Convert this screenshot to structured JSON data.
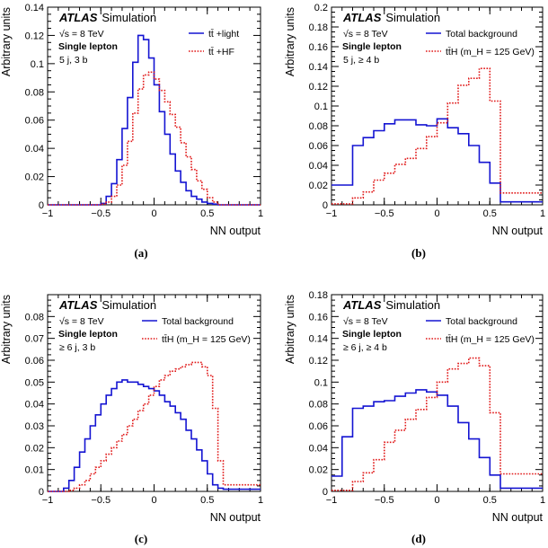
{
  "colors": {
    "series1": "#1414d2",
    "series2": "#e01818"
  },
  "chart_data": [
    {
      "type": "line",
      "panel_label": "(a)",
      "title": "ATLAS Simulation",
      "atlas": "ATLAS",
      "simulation": "Simulation",
      "energy": "√s = 8 TeV",
      "channel": "Single lepton",
      "region": "5 j, 3 b",
      "xlabel": "NN output",
      "ylabel": "Arbitrary units",
      "xlim": [
        -1,
        1
      ],
      "ylim": [
        0,
        0.14
      ],
      "xticks": [
        {
          "v": -1,
          "t": "−1"
        },
        {
          "v": -0.5,
          "t": "−0.5"
        },
        {
          "v": 0,
          "t": "0"
        },
        {
          "v": 0.5,
          "t": "0.5"
        },
        {
          "v": 1,
          "t": "1"
        }
      ],
      "yticks": [
        {
          "v": 0,
          "t": "0"
        },
        {
          "v": 0.02,
          "t": "0.02"
        },
        {
          "v": 0.04,
          "t": "0.04"
        },
        {
          "v": 0.06,
          "t": "0.06"
        },
        {
          "v": 0.08,
          "t": "0.08"
        },
        {
          "v": 0.1,
          "t": "0.1"
        },
        {
          "v": 0.12,
          "t": "0.12"
        },
        {
          "v": 0.14,
          "t": "0.14"
        }
      ],
      "series": [
        {
          "name": "tt̄ +light",
          "style": "solid",
          "edges": [
            -1,
            -0.5,
            -0.45,
            -0.4,
            -0.35,
            -0.3,
            -0.25,
            -0.2,
            -0.15,
            -0.1,
            -0.05,
            0,
            0.05,
            0.1,
            0.15,
            0.2,
            0.25,
            0.3,
            0.35,
            0.4,
            0.45,
            0.5,
            0.55,
            0.6,
            1
          ],
          "values": [
            0,
            0.001,
            0.006,
            0.015,
            0.032,
            0.054,
            0.076,
            0.101,
            0.12,
            0.117,
            0.104,
            0.085,
            0.066,
            0.05,
            0.036,
            0.024,
            0.016,
            0.01,
            0.006,
            0.004,
            0.002,
            0.001,
            0.0005,
            0
          ]
        },
        {
          "name": "tt̄ +HF",
          "style": "dotted",
          "edges": [
            -1,
            -0.5,
            -0.45,
            -0.4,
            -0.35,
            -0.3,
            -0.25,
            -0.2,
            -0.15,
            -0.1,
            -0.05,
            0,
            0.05,
            0.1,
            0.15,
            0.2,
            0.25,
            0.3,
            0.35,
            0.4,
            0.45,
            0.5,
            0.55,
            0.6,
            1
          ],
          "values": [
            0,
            0.0005,
            0.002,
            0.006,
            0.014,
            0.028,
            0.045,
            0.065,
            0.082,
            0.092,
            0.094,
            0.089,
            0.081,
            0.073,
            0.064,
            0.055,
            0.044,
            0.034,
            0.025,
            0.017,
            0.011,
            0.005,
            0.002,
            0
          ]
        }
      ]
    },
    {
      "type": "line",
      "panel_label": "(b)",
      "title": "ATLAS Simulation",
      "atlas": "ATLAS",
      "simulation": "Simulation",
      "energy": "√s = 8 TeV",
      "channel": "Single lepton",
      "region": "5 j, ≥ 4 b",
      "xlabel": "NN output",
      "ylabel": "Arbitrary units",
      "xlim": [
        -1,
        1
      ],
      "ylim": [
        0,
        0.2
      ],
      "xticks": [
        {
          "v": -1,
          "t": "−1"
        },
        {
          "v": -0.5,
          "t": "−0.5"
        },
        {
          "v": 0,
          "t": "0"
        },
        {
          "v": 0.5,
          "t": "0.5"
        },
        {
          "v": 1,
          "t": "1"
        }
      ],
      "yticks": [
        {
          "v": 0,
          "t": "0"
        },
        {
          "v": 0.02,
          "t": "0.02"
        },
        {
          "v": 0.04,
          "t": "0.04"
        },
        {
          "v": 0.06,
          "t": "0.06"
        },
        {
          "v": 0.08,
          "t": "0.08"
        },
        {
          "v": 0.1,
          "t": "0.1"
        },
        {
          "v": 0.12,
          "t": "0.12"
        },
        {
          "v": 0.14,
          "t": "0.14"
        },
        {
          "v": 0.16,
          "t": "0.16"
        },
        {
          "v": 0.18,
          "t": "0.18"
        },
        {
          "v": 0.2,
          "t": "0.2"
        }
      ],
      "series": [
        {
          "name": "Total background",
          "style": "solid",
          "edges": [
            -1,
            -0.8,
            -0.7,
            -0.6,
            -0.5,
            -0.4,
            -0.3,
            -0.2,
            -0.1,
            0,
            0.1,
            0.2,
            0.3,
            0.4,
            0.5,
            0.6,
            1
          ],
          "values": [
            0.02,
            0.06,
            0.068,
            0.075,
            0.082,
            0.086,
            0.086,
            0.081,
            0.08,
            0.087,
            0.078,
            0.072,
            0.06,
            0.043,
            0.022,
            0.003
          ]
        },
        {
          "name": "tt̄H (m_H = 125 GeV)",
          "style": "dotted",
          "edges": [
            -1,
            -0.8,
            -0.7,
            -0.6,
            -0.5,
            -0.4,
            -0.3,
            -0.2,
            -0.1,
            0,
            0.1,
            0.2,
            0.3,
            0.4,
            0.5,
            0.6,
            1
          ],
          "values": [
            0.001,
            0.007,
            0.013,
            0.025,
            0.032,
            0.041,
            0.047,
            0.057,
            0.069,
            0.083,
            0.103,
            0.121,
            0.128,
            0.138,
            0.105,
            0.012
          ]
        }
      ]
    },
    {
      "type": "line",
      "panel_label": "(c)",
      "title": "ATLAS Simulation",
      "atlas": "ATLAS",
      "simulation": "Simulation",
      "energy": "√s = 8 TeV",
      "channel": "Single lepton",
      "region": "≥ 6 j, 3 b",
      "xlabel": "NN output",
      "ylabel": "Arbitrary units",
      "xlim": [
        -1,
        1
      ],
      "ylim": [
        0,
        0.09
      ],
      "xticks": [
        {
          "v": -1,
          "t": "−1"
        },
        {
          "v": -0.5,
          "t": "−0.5"
        },
        {
          "v": 0,
          "t": "0"
        },
        {
          "v": 0.5,
          "t": "0.5"
        },
        {
          "v": 1,
          "t": "1"
        }
      ],
      "yticks": [
        {
          "v": 0,
          "t": "0"
        },
        {
          "v": 0.01,
          "t": "0.01"
        },
        {
          "v": 0.02,
          "t": "0.02"
        },
        {
          "v": 0.03,
          "t": "0.03"
        },
        {
          "v": 0.04,
          "t": "0.04"
        },
        {
          "v": 0.05,
          "t": "0.05"
        },
        {
          "v": 0.06,
          "t": "0.06"
        },
        {
          "v": 0.07,
          "t": "0.07"
        },
        {
          "v": 0.08,
          "t": "0.08"
        }
      ],
      "series": [
        {
          "name": "Total background",
          "style": "solid",
          "edges": [
            -1,
            -0.85,
            -0.8,
            -0.75,
            -0.7,
            -0.65,
            -0.6,
            -0.55,
            -0.5,
            -0.45,
            -0.4,
            -0.35,
            -0.3,
            -0.25,
            -0.2,
            -0.15,
            -0.1,
            -0.05,
            0,
            0.05,
            0.1,
            0.15,
            0.2,
            0.25,
            0.3,
            0.35,
            0.4,
            0.45,
            0.5,
            0.55,
            0.6,
            0.65,
            1
          ],
          "values": [
            0,
            0.0015,
            0.005,
            0.011,
            0.018,
            0.024,
            0.03,
            0.035,
            0.04,
            0.044,
            0.047,
            0.05,
            0.051,
            0.05,
            0.05,
            0.049,
            0.048,
            0.047,
            0.046,
            0.044,
            0.041,
            0.039,
            0.036,
            0.033,
            0.028,
            0.024,
            0.019,
            0.014,
            0.008,
            0.003,
            0.0015,
            0.001
          ]
        },
        {
          "name": "tt̄H (m_H = 125 GeV)",
          "style": "dotted",
          "edges": [
            -1,
            -0.85,
            -0.8,
            -0.75,
            -0.7,
            -0.65,
            -0.6,
            -0.55,
            -0.5,
            -0.45,
            -0.4,
            -0.35,
            -0.3,
            -0.25,
            -0.2,
            -0.15,
            -0.1,
            -0.05,
            0,
            0.05,
            0.1,
            0.15,
            0.2,
            0.25,
            0.3,
            0.35,
            0.4,
            0.45,
            0.5,
            0.55,
            0.6,
            0.65,
            1
          ],
          "values": [
            0,
            0,
            0.0005,
            0.0015,
            0.003,
            0.005,
            0.008,
            0.011,
            0.014,
            0.017,
            0.02,
            0.023,
            0.026,
            0.03,
            0.033,
            0.037,
            0.04,
            0.044,
            0.048,
            0.051,
            0.053,
            0.055,
            0.056,
            0.057,
            0.058,
            0.059,
            0.059,
            0.057,
            0.053,
            0.038,
            0.014,
            0.003
          ]
        }
      ]
    },
    {
      "type": "line",
      "panel_label": "(d)",
      "title": "ATLAS Simulation",
      "atlas": "ATLAS",
      "simulation": "Simulation",
      "energy": "√s = 8 TeV",
      "channel": "Single lepton",
      "region": "≥ 6 j, ≥ 4 b",
      "xlabel": "NN output",
      "ylabel": "Arbitrary units",
      "xlim": [
        -1,
        1
      ],
      "ylim": [
        0,
        0.18
      ],
      "xticks": [
        {
          "v": -1,
          "t": "−1"
        },
        {
          "v": -0.5,
          "t": "−0.5"
        },
        {
          "v": 0,
          "t": "0"
        },
        {
          "v": 0.5,
          "t": "0.5"
        },
        {
          "v": 1,
          "t": "1"
        }
      ],
      "yticks": [
        {
          "v": 0,
          "t": "0"
        },
        {
          "v": 0.02,
          "t": "0.02"
        },
        {
          "v": 0.04,
          "t": "0.04"
        },
        {
          "v": 0.06,
          "t": "0.06"
        },
        {
          "v": 0.08,
          "t": "0.08"
        },
        {
          "v": 0.1,
          "t": "0.1"
        },
        {
          "v": 0.12,
          "t": "0.12"
        },
        {
          "v": 0.14,
          "t": "0.14"
        },
        {
          "v": 0.16,
          "t": "0.16"
        },
        {
          "v": 0.18,
          "t": "0.18"
        }
      ],
      "series": [
        {
          "name": "Total background",
          "style": "solid",
          "edges": [
            -1,
            -0.9,
            -0.8,
            -0.7,
            -0.6,
            -0.5,
            -0.4,
            -0.3,
            -0.2,
            -0.1,
            0,
            0.1,
            0.2,
            0.3,
            0.4,
            0.5,
            0.6,
            1
          ],
          "values": [
            0.014,
            0.05,
            0.076,
            0.078,
            0.082,
            0.083,
            0.087,
            0.09,
            0.093,
            0.091,
            0.088,
            0.078,
            0.063,
            0.048,
            0.031,
            0.015,
            0.003
          ]
        },
        {
          "name": "tt̄H (m_H = 125 GeV)",
          "style": "dotted",
          "edges": [
            -1,
            -0.8,
            -0.7,
            -0.6,
            -0.5,
            -0.4,
            -0.3,
            -0.2,
            -0.1,
            0,
            0.1,
            0.2,
            0.3,
            0.4,
            0.5,
            0.6,
            1
          ],
          "values": [
            0.001,
            0.009,
            0.017,
            0.029,
            0.045,
            0.056,
            0.066,
            0.075,
            0.086,
            0.1,
            0.112,
            0.117,
            0.122,
            0.115,
            0.072,
            0.016
          ]
        }
      ]
    }
  ]
}
